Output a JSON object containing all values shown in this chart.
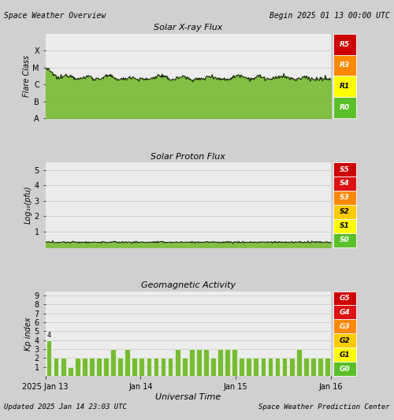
{
  "title_left": "Space Weather Overview",
  "title_right": "Begin 2025 01 13 00:00 UTC",
  "footer_left": "Updated 2025 Jan 14 23:03 UTC",
  "footer_right": "Space Weather Prediction Center",
  "xlabel": "Universal Time",
  "xray_title": "Solar X-ray Flux",
  "proton_title": "Solar Proton Flux",
  "geo_title_full": "Geomagnetic Activity",
  "xray_ylabel": "Flare Class",
  "proton_ylabel": "Log₁₀(pfu)",
  "geo_ylabel": "Kp index",
  "bg_color": "#d0d0d0",
  "plot_bg_color": "#ececec",
  "grid_color": "#bbbbbb",
  "xray_fill_color": "#77bb33",
  "proton_fill_color": "#77bb33",
  "geo_bar_color": "#77bb33",
  "n_points": 400,
  "kp_values": [
    4,
    2,
    2,
    1,
    2,
    2,
    2,
    2,
    2,
    3,
    2,
    3,
    2,
    2,
    2,
    2,
    2,
    2,
    3,
    2,
    3,
    3,
    3,
    2,
    3,
    3,
    3,
    2,
    2,
    2,
    2,
    2,
    2,
    2,
    2,
    3,
    2,
    2,
    2,
    2
  ],
  "xray_scale": [
    [
      "R0",
      "#5bbf2a"
    ],
    [
      "R1",
      "#ffff00"
    ],
    [
      "R3",
      "#ff8800"
    ],
    [
      "R5",
      "#cc0000"
    ]
  ],
  "proton_scale": [
    [
      "S0",
      "#5bbf2a"
    ],
    [
      "S1",
      "#ffff00"
    ],
    [
      "S2",
      "#ffcc00"
    ],
    [
      "S3",
      "#ff8800"
    ],
    [
      "S4",
      "#dd1111"
    ],
    [
      "S5",
      "#cc0000"
    ]
  ],
  "geo_scale": [
    [
      "G0",
      "#5bbf2a"
    ],
    [
      "G1",
      "#ffff00"
    ],
    [
      "G2",
      "#ffcc00"
    ],
    [
      "G3",
      "#ff8800"
    ],
    [
      "G4",
      "#dd1111"
    ],
    [
      "G5",
      "#cc0000"
    ]
  ],
  "scale_text_colors": {
    "#5bbf2a": "white",
    "#ffff00": "black",
    "#ffcc00": "black",
    "#ff8800": "white",
    "#dd1111": "white",
    "#cc0000": "white"
  }
}
